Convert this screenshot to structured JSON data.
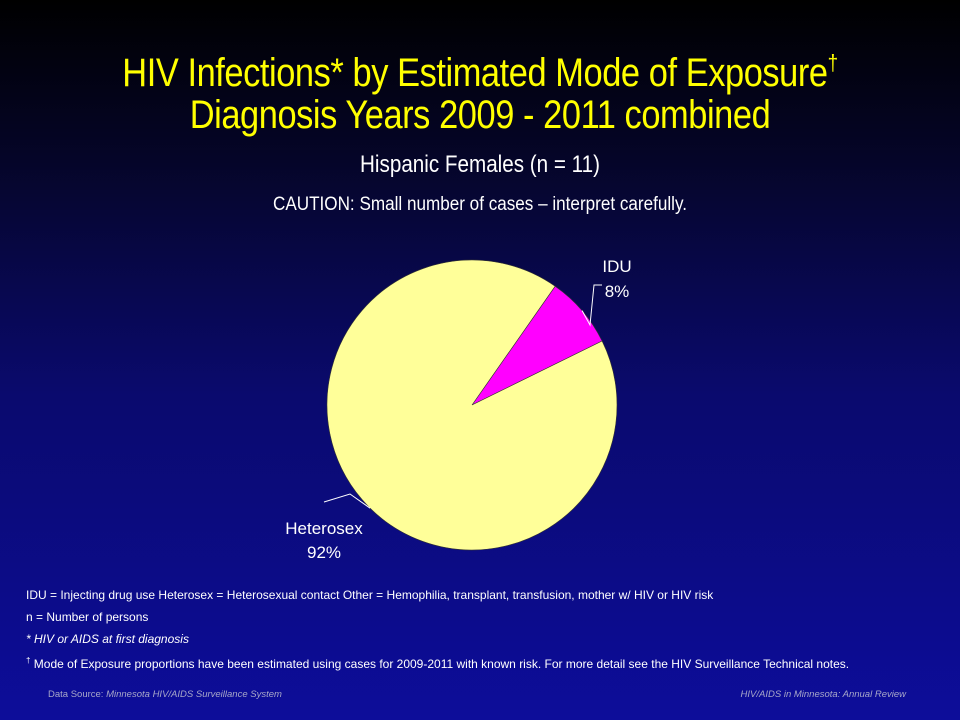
{
  "title": {
    "line1": "HIV Infections* by Estimated Mode of Exposure",
    "line1_mark": "†",
    "line2": "Diagnosis Years 2009 - 2011 combined"
  },
  "subtitle": "Hispanic Females (n = 11)",
  "caution": "CAUTION: Small number of cases – interpret carefully.",
  "chart_data": {
    "type": "pie",
    "slices": [
      {
        "label": "IDU",
        "value": 8,
        "value_label": "8%",
        "color": "#ff00ff"
      },
      {
        "label": "Heterosex",
        "value": 92,
        "value_label": "92%",
        "color": "#ffff99"
      }
    ]
  },
  "notes": {
    "legend_line": "IDU = Injecting drug use   Heterosex = Heterosexual contact   Other = Hemophilia, transplant, transfusion, mother w/ HIV or HIV risk",
    "n_line": "n = Number of persons",
    "star_line": "* HIV or AIDS at first diagnosis",
    "dagger_mark": "†",
    "dagger_line": " Mode of Exposure proportions have been estimated using cases for 2009-2011  with known risk. For more detail see the HIV Surveillance Technical notes."
  },
  "footer": {
    "source_prefix": "Data Source: ",
    "source_name": "Minnesota HIV/AIDS Surveillance  System",
    "right": "HIV/AIDS in Minnesota: Annual Review"
  }
}
